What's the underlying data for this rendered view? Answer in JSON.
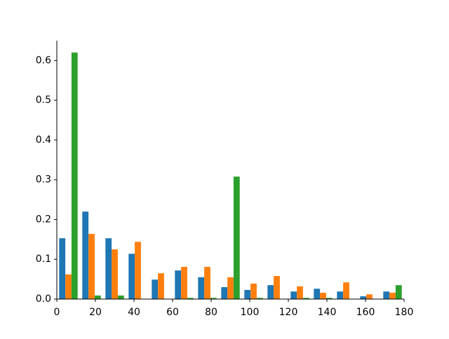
{
  "chart_data": {
    "type": "histogram",
    "bins": [
      0,
      12,
      24,
      36,
      48,
      60,
      72,
      84,
      96,
      108,
      120,
      132,
      144,
      156,
      168,
      180
    ],
    "series": [
      {
        "color": "#1f77b4",
        "values": [
          0.153,
          0.22,
          0.153,
          0.114,
          0.049,
          0.072,
          0.055,
          0.03,
          0.023,
          0.035,
          0.019,
          0.026,
          0.019,
          0.007,
          0.019
        ]
      },
      {
        "color": "#ff7f0e",
        "values": [
          0.062,
          0.164,
          0.125,
          0.144,
          0.065,
          0.081,
          0.081,
          0.055,
          0.039,
          0.058,
          0.032,
          0.016,
          0.042,
          0.012,
          0.016
        ]
      },
      {
        "color": "#2ca02c",
        "values": [
          0.62,
          0.009,
          0.009,
          0,
          0,
          0.003,
          0.003,
          0.308,
          0.003,
          0,
          0.003,
          0.003,
          0,
          0,
          0.035
        ]
      }
    ],
    "xlim": [
      0,
      180
    ],
    "xticks": [
      0,
      20,
      40,
      60,
      80,
      100,
      120,
      140,
      160,
      180
    ],
    "ylim": [
      0,
      0.65
    ],
    "yticks": [
      {
        "value": 0,
        "label": "0.0"
      },
      0.1,
      0.2,
      0.3,
      0.4,
      0.5,
      0.6
    ]
  }
}
